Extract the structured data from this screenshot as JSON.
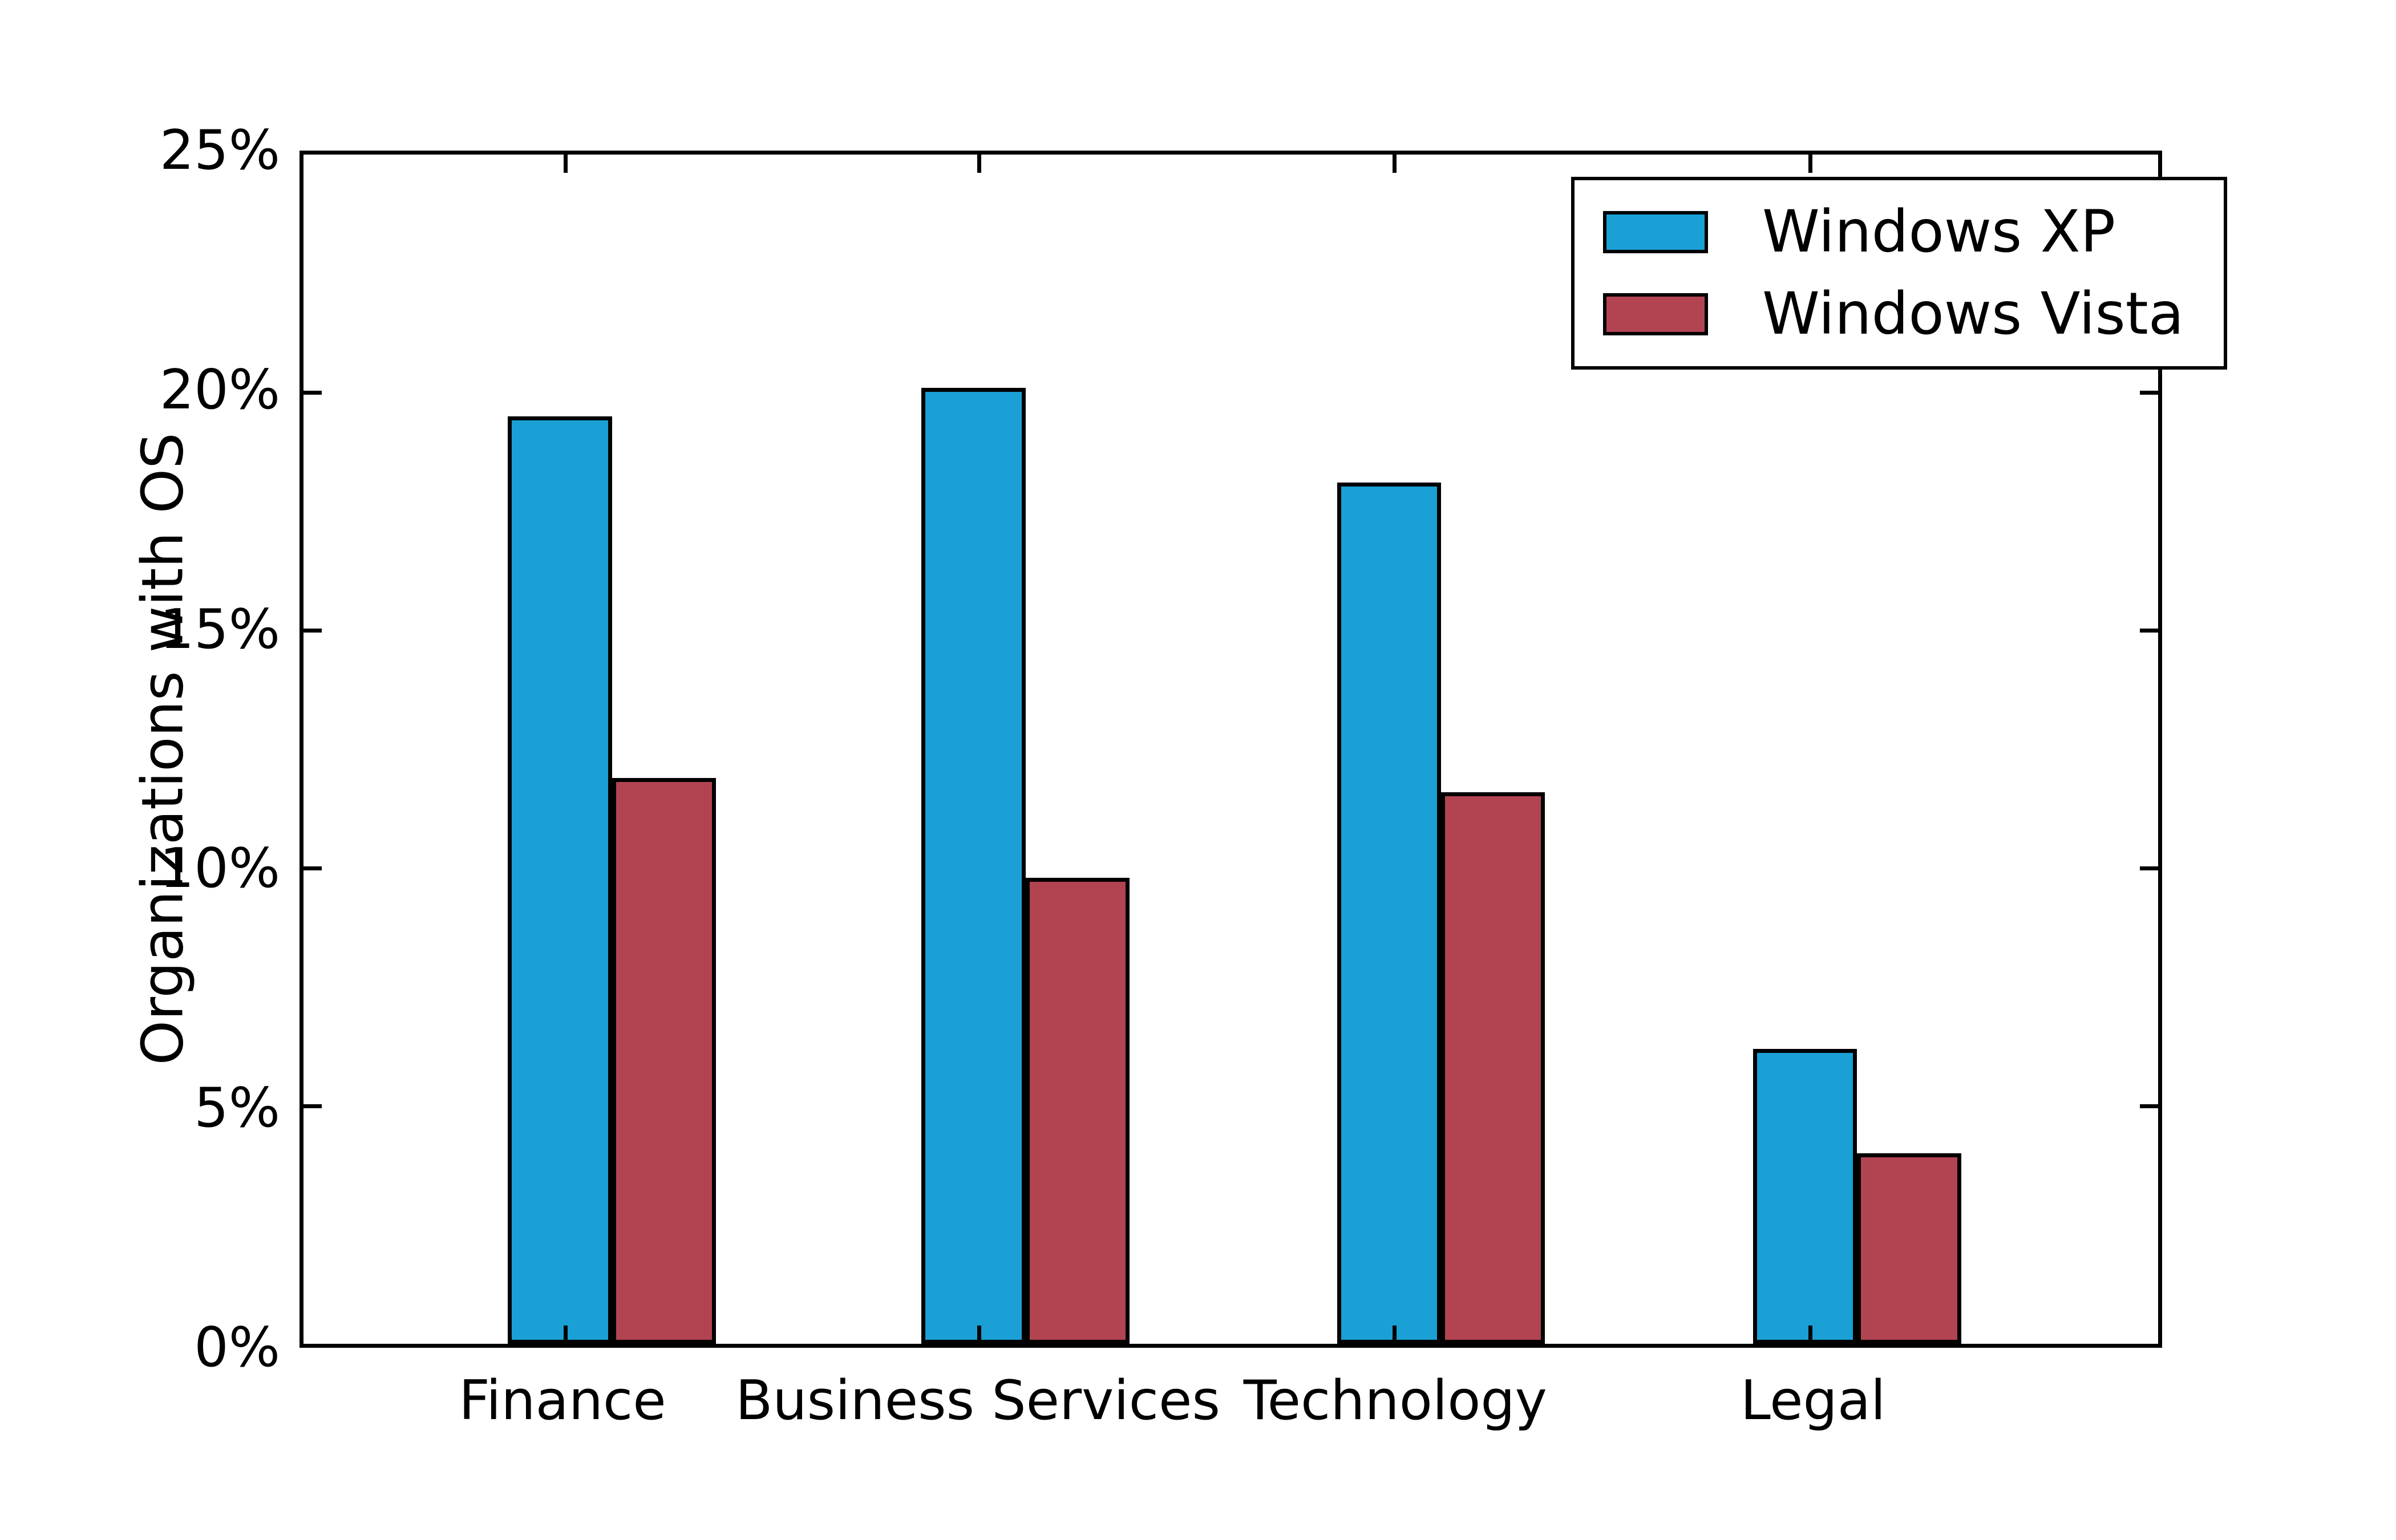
{
  "chart_data": {
    "type": "bar",
    "categories": [
      "Finance",
      "Business Services",
      "Technology",
      "Legal"
    ],
    "series": [
      {
        "name": "Windows XP",
        "color": "#1AA0D5",
        "values": [
          19.5,
          20.1,
          18.1,
          6.2
        ]
      },
      {
        "name": "Windows Vista",
        "color": "#B24452",
        "values": [
          11.9,
          9.8,
          11.6,
          4.0
        ]
      }
    ],
    "title": "",
    "xlabel": "",
    "ylabel": "Organizations with OS",
    "ylim": [
      0,
      25
    ],
    "yticks": [
      0,
      5,
      10,
      15,
      20,
      25
    ],
    "ytick_labels": [
      "0%",
      "5%",
      "10%",
      "15%",
      "20%",
      "25%"
    ],
    "grid": false,
    "legend_position": "upper right",
    "bar_edge_color": "#000000",
    "axes_box": true,
    "tick_direction": "in"
  }
}
